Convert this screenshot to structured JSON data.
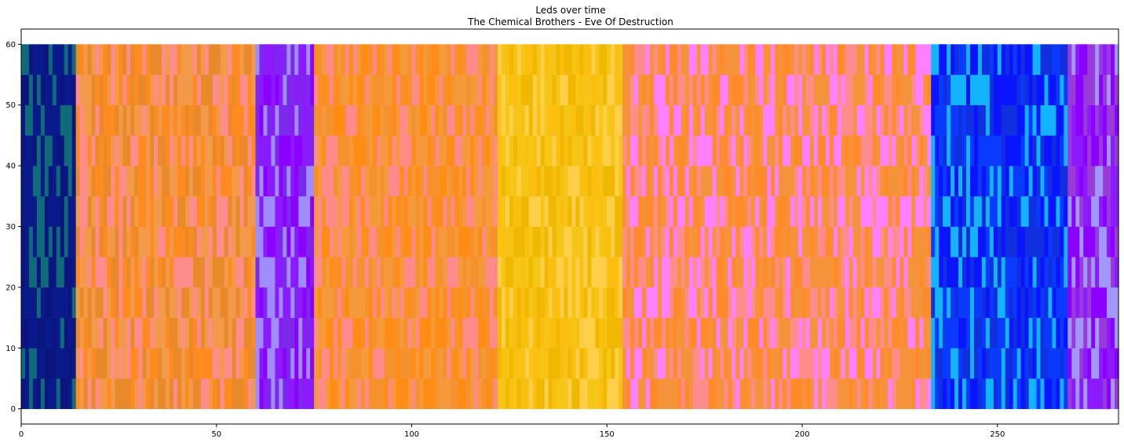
{
  "chart_data": {
    "type": "heatmap",
    "title": "Leds over time",
    "subtitle": "The Chemical Brothers - Eve Of Destruction",
    "xlabel": "",
    "ylabel": "",
    "xlim": [
      0,
      281
    ],
    "ylim": [
      -2.5,
      62.5
    ],
    "xticks": [
      0,
      50,
      100,
      150,
      200,
      250
    ],
    "yticks": [
      0,
      10,
      20,
      30,
      40,
      50,
      60
    ],
    "grid": false,
    "rows": [
      {
        "y0": 0,
        "y1": 5
      },
      {
        "y0": 5,
        "y1": 10
      },
      {
        "y0": 10,
        "y1": 15
      },
      {
        "y0": 15,
        "y1": 20
      },
      {
        "y0": 20,
        "y1": 25
      },
      {
        "y0": 25,
        "y1": 30
      },
      {
        "y0": 30,
        "y1": 35
      },
      {
        "y0": 35,
        "y1": 40
      },
      {
        "y0": 40,
        "y1": 45
      },
      {
        "y0": 45,
        "y1": 50
      },
      {
        "y0": 50,
        "y1": 55
      },
      {
        "y0": 55,
        "y1": 60
      }
    ],
    "segments": [
      {
        "x0": 0,
        "x1": 14,
        "colors": [
          "#0a1a8a",
          "#0f6b7a",
          "#0b1580",
          "#0a1a8a"
        ]
      },
      {
        "x0": 14,
        "x1": 60,
        "colors": [
          "#ff8a1f",
          "#f29a4a",
          "#ff8c8c",
          "#e88a2a"
        ]
      },
      {
        "x0": 60,
        "x1": 75,
        "colors": [
          "#8c1aff",
          "#7a2ae8",
          "#9f8cff",
          "#8c00ff"
        ]
      },
      {
        "x0": 75,
        "x1": 122,
        "colors": [
          "#ff8c14",
          "#f5922e",
          "#ff8a8a",
          "#f49a3a"
        ]
      },
      {
        "x0": 122,
        "x1": 154,
        "colors": [
          "#fbbf10",
          "#f5c518",
          "#ffcf4a",
          "#f0b800"
        ]
      },
      {
        "x0": 154,
        "x1": 233,
        "colors": [
          "#ff8a2a",
          "#ff8c8c",
          "#ff80ff",
          "#f5933a"
        ]
      },
      {
        "x0": 233,
        "x1": 268,
        "colors": [
          "#0a14ff",
          "#0a3aff",
          "#12b4ff",
          "#1030e0"
        ]
      },
      {
        "x0": 268,
        "x1": 281,
        "colors": [
          "#8c1aff",
          "#9a3ad8",
          "#a098ff",
          "#8c00ff"
        ]
      }
    ]
  }
}
